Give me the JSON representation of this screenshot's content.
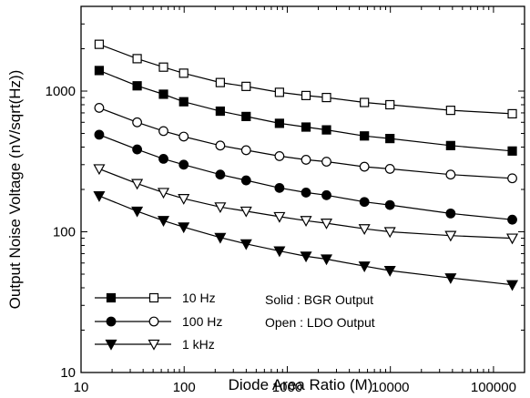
{
  "chart_data": {
    "type": "line",
    "xlabel": "Diode Area Ratio (M)",
    "ylabel": "Output Noise Voltage (nV/sqrt(Hz))",
    "xscale": "log",
    "yscale": "log",
    "xlim": [
      10,
      200000
    ],
    "ylim": [
      10,
      4000
    ],
    "xticks": [
      10,
      100,
      1000,
      10000,
      100000
    ],
    "xtick_labels": [
      "10",
      "100",
      "1000",
      "10000",
      "100000"
    ],
    "yticks": [
      10,
      100,
      1000
    ],
    "ytick_labels": [
      "10",
      "100",
      "1000"
    ],
    "grid": false,
    "legend": {
      "placement": "bottom-left",
      "entries": [
        {
          "label": "10 Hz",
          "solid_marker": "square",
          "open_marker": "square"
        },
        {
          "label": "100 Hz",
          "solid_marker": "circle",
          "open_marker": "circle"
        },
        {
          "label": "1 kHz",
          "solid_marker": "triangle-down",
          "open_marker": "triangle-down"
        }
      ]
    },
    "annotations": [
      "Solid : BGR Output",
      "Open : LDO Output"
    ],
    "x": [
      15,
      35,
      63,
      99,
      224,
      399,
      840,
      1520,
      2400,
      5600,
      9900,
      38400,
      152100
    ],
    "series": [
      {
        "name": "10 Hz",
        "fill": "solid",
        "marker": "square",
        "values": [
          1400,
          1090,
          950,
          840,
          720,
          660,
          590,
          555,
          530,
          480,
          460,
          410,
          375
        ]
      },
      {
        "name": "10 Hz",
        "fill": "open",
        "marker": "square",
        "values": [
          2150,
          1700,
          1480,
          1340,
          1150,
          1080,
          980,
          930,
          900,
          830,
          800,
          730,
          690
        ]
      },
      {
        "name": "100 Hz",
        "fill": "solid",
        "marker": "circle",
        "values": [
          490,
          385,
          330,
          300,
          255,
          232,
          205,
          190,
          182,
          163,
          155,
          135,
          122
        ]
      },
      {
        "name": "100 Hz",
        "fill": "open",
        "marker": "circle",
        "values": [
          760,
          600,
          520,
          475,
          410,
          380,
          345,
          325,
          315,
          290,
          280,
          255,
          240
        ]
      },
      {
        "name": "1 kHz",
        "fill": "solid",
        "marker": "triangle-down",
        "values": [
          180,
          140,
          120,
          108,
          91,
          82,
          73,
          67,
          64,
          57,
          53,
          47,
          42
        ]
      },
      {
        "name": "1 kHz",
        "fill": "open",
        "marker": "triangle-down",
        "values": [
          280,
          220,
          190,
          172,
          150,
          140,
          128,
          120,
          115,
          105,
          100,
          94,
          90
        ]
      }
    ]
  }
}
